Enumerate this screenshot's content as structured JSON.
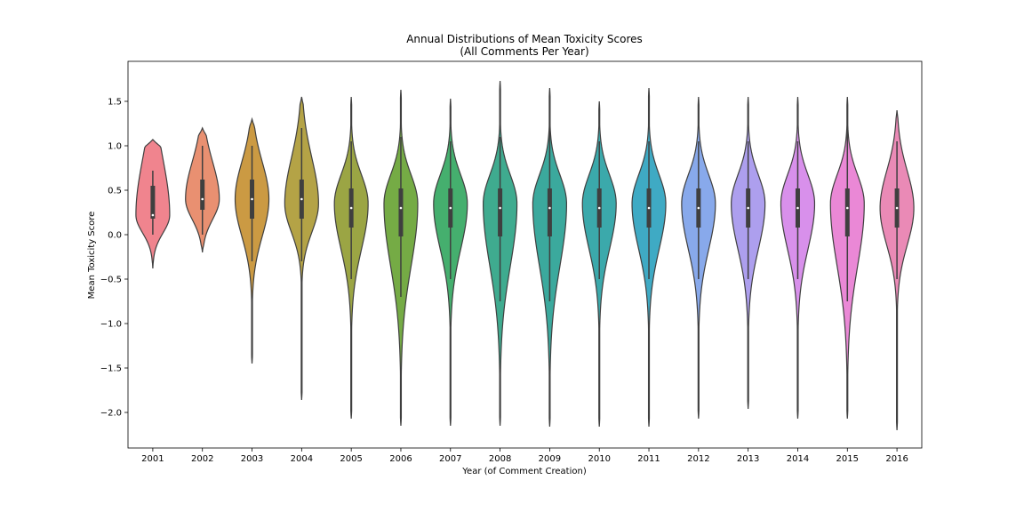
{
  "chart_data": {
    "type": "violin",
    "title": "Annual Distributions of Mean Toxicity Scores",
    "subtitle": "(All Comments Per Year)",
    "xlabel": "Year (of Comment Creation)",
    "ylabel": "Mean Toxicity Score",
    "ylim": [
      -2.4,
      1.95
    ],
    "yticks": [
      1.5,
      1.0,
      0.5,
      0.0,
      -0.5,
      -1.0,
      -1.5,
      -2.0
    ],
    "ytick_labels": [
      "1.5",
      "1.0",
      "0.5",
      "0.0",
      "−0.5",
      "−1.0",
      "−1.5",
      "−2.0"
    ],
    "legend": "none",
    "grid": false,
    "categories": [
      "2001",
      "2002",
      "2003",
      "2004",
      "2005",
      "2006",
      "2007",
      "2008",
      "2009",
      "2010",
      "2011",
      "2012",
      "2013",
      "2014",
      "2015",
      "2016"
    ],
    "colors": [
      "#f0848e",
      "#e99071",
      "#cb9a43",
      "#b4a346",
      "#9ba544",
      "#75ab45",
      "#45af6e",
      "#3fab8f",
      "#3ba99d",
      "#3ba9ab",
      "#3faac4",
      "#88a9eb",
      "#ad9fee",
      "#d890eb",
      "#ea88d6",
      "#ea8ab6"
    ],
    "distributions": [
      {
        "min": -0.38,
        "q1": 0.18,
        "median": 0.22,
        "q3": 0.55,
        "max": 1.07,
        "mode": 0.22,
        "whisker_low": 0.0,
        "whisker_high": 0.72
      },
      {
        "min": -0.2,
        "q1": 0.28,
        "median": 0.4,
        "q3": 0.62,
        "max": 1.2,
        "mode": 0.4,
        "whisker_low": 0.0,
        "whisker_high": 1.0
      },
      {
        "min": -1.45,
        "q1": 0.18,
        "median": 0.4,
        "q3": 0.62,
        "max": 1.3,
        "mode": 0.4,
        "whisker_low": -0.3,
        "whisker_high": 1.0
      },
      {
        "min": -1.86,
        "q1": 0.18,
        "median": 0.4,
        "q3": 0.62,
        "max": 1.55,
        "mode": 0.35,
        "whisker_low": -0.3,
        "whisker_high": 1.2
      },
      {
        "min": -2.07,
        "q1": 0.08,
        "median": 0.3,
        "q3": 0.52,
        "max": 1.55,
        "mode": 0.35,
        "whisker_low": -0.5,
        "whisker_high": 1.05
      },
      {
        "min": -2.15,
        "q1": -0.02,
        "median": 0.3,
        "q3": 0.52,
        "max": 1.63,
        "mode": 0.35,
        "whisker_low": -0.7,
        "whisker_high": 1.1
      },
      {
        "min": -2.15,
        "q1": 0.08,
        "median": 0.3,
        "q3": 0.52,
        "max": 1.53,
        "mode": 0.35,
        "whisker_low": -0.5,
        "whisker_high": 1.05
      },
      {
        "min": -2.15,
        "q1": -0.02,
        "median": 0.3,
        "q3": 0.52,
        "max": 1.73,
        "mode": 0.35,
        "whisker_low": -0.75,
        "whisker_high": 1.1
      },
      {
        "min": -2.16,
        "q1": -0.02,
        "median": 0.3,
        "q3": 0.52,
        "max": 1.65,
        "mode": 0.35,
        "whisker_low": -0.75,
        "whisker_high": 1.2
      },
      {
        "min": -2.16,
        "q1": 0.08,
        "median": 0.3,
        "q3": 0.52,
        "max": 1.5,
        "mode": 0.35,
        "whisker_low": -0.5,
        "whisker_high": 1.05
      },
      {
        "min": -2.16,
        "q1": 0.08,
        "median": 0.3,
        "q3": 0.52,
        "max": 1.65,
        "mode": 0.35,
        "whisker_low": -0.5,
        "whisker_high": 1.05
      },
      {
        "min": -2.07,
        "q1": 0.08,
        "median": 0.3,
        "q3": 0.52,
        "max": 1.55,
        "mode": 0.35,
        "whisker_low": -0.5,
        "whisker_high": 1.05
      },
      {
        "min": -1.96,
        "q1": 0.08,
        "median": 0.3,
        "q3": 0.52,
        "max": 1.55,
        "mode": 0.35,
        "whisker_low": -0.5,
        "whisker_high": 1.05
      },
      {
        "min": -2.07,
        "q1": 0.08,
        "median": 0.3,
        "q3": 0.52,
        "max": 1.55,
        "mode": 0.35,
        "whisker_low": -0.5,
        "whisker_high": 1.05
      },
      {
        "min": -2.07,
        "q1": -0.02,
        "median": 0.3,
        "q3": 0.52,
        "max": 1.55,
        "mode": 0.35,
        "whisker_low": -0.75,
        "whisker_high": 1.2
      },
      {
        "min": -2.2,
        "q1": 0.08,
        "median": 0.3,
        "q3": 0.52,
        "max": 1.4,
        "mode": 0.3,
        "whisker_low": -0.5,
        "whisker_high": 1.05
      }
    ]
  }
}
